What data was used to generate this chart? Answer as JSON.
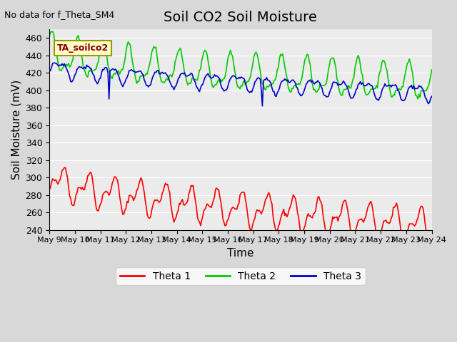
{
  "title": "Soil CO2 Soil Moisture",
  "ylabel": "Soil Moisture (mV)",
  "xlabel": "Time",
  "annotation_text": "No data for f_Theta_SM4",
  "box_label": "TA_soilco2",
  "ylim": [
    240,
    470
  ],
  "yticks": [
    240,
    260,
    280,
    300,
    320,
    340,
    360,
    380,
    400,
    420,
    440,
    460
  ],
  "x_tick_labels": [
    "May 9",
    "May 10",
    "May 11",
    "May 12",
    "May 13",
    "May 14",
    "May 15",
    "May 16",
    "May 17",
    "May 18",
    "May 19",
    "May 20",
    "May 21",
    "May 22",
    "May 23",
    "May 24"
  ],
  "colors": {
    "theta1": "#ff0000",
    "theta2": "#00cc00",
    "theta3": "#0000cc",
    "fig_bg": "#d8d8d8",
    "ax_bg": "#ebebeb",
    "grid": "#ffffff",
    "box_bg": "#ffffcc",
    "box_border": "#999900"
  },
  "legend": [
    "Theta 1",
    "Theta 2",
    "Theta 3"
  ],
  "title_fontsize": 14,
  "axis_fontsize": 11,
  "tick_fontsize": 9
}
